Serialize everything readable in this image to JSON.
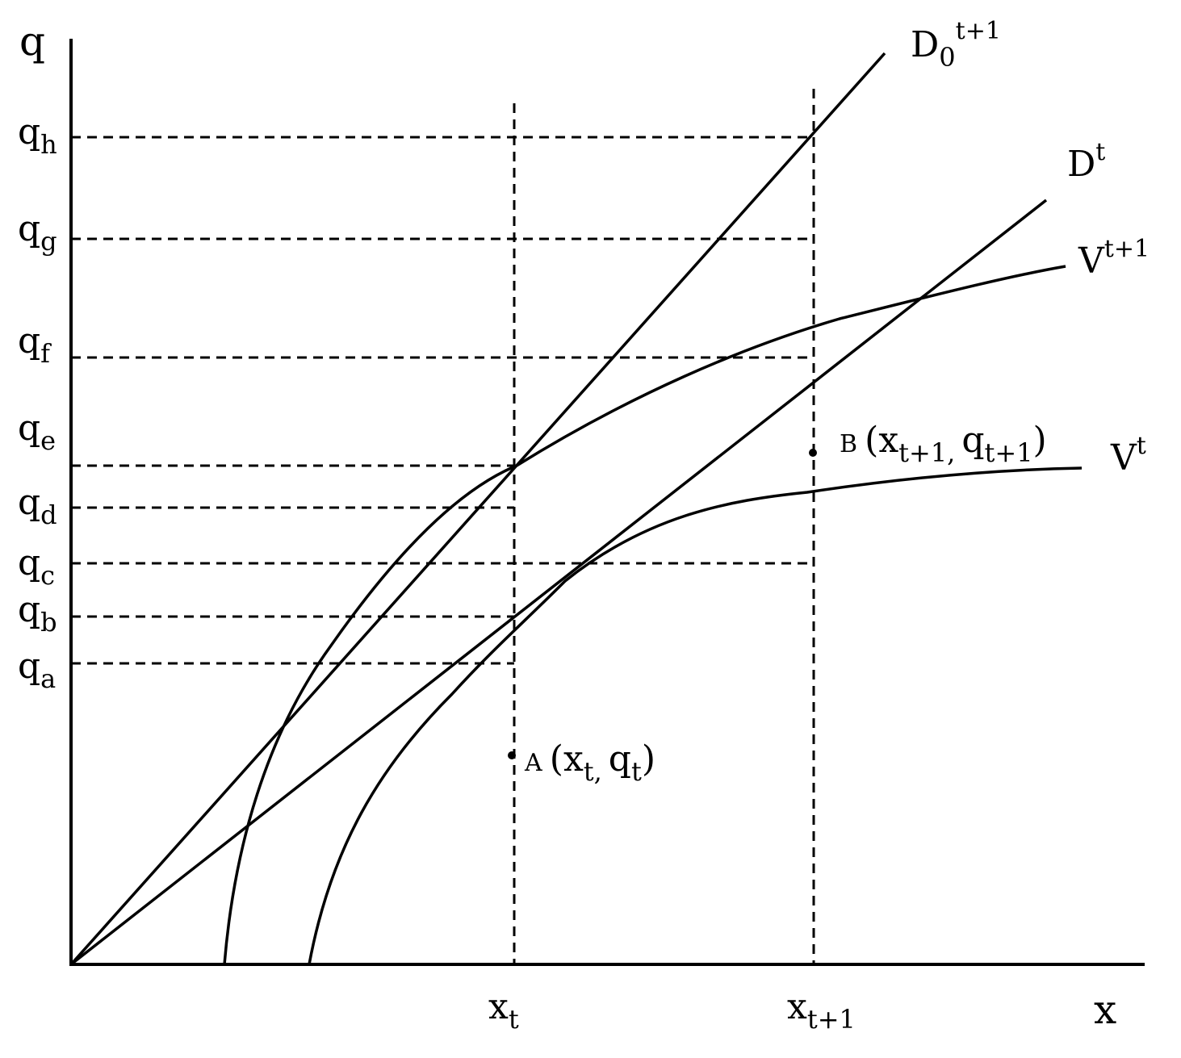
{
  "axes": {
    "y_label": "q",
    "x_label": "x"
  },
  "y_ticks": [
    {
      "main": "q",
      "sub": "h"
    },
    {
      "main": "q",
      "sub": "g"
    },
    {
      "main": "q",
      "sub": "f"
    },
    {
      "main": "q",
      "sub": "e"
    },
    {
      "main": "q",
      "sub": "d"
    },
    {
      "main": "q",
      "sub": "c"
    },
    {
      "main": "q",
      "sub": "b"
    },
    {
      "main": "q",
      "sub": "a"
    }
  ],
  "x_ticks": [
    {
      "main": "x",
      "sub": "t"
    },
    {
      "main": "x",
      "sub": "t+1"
    }
  ],
  "curves": {
    "d0": {
      "main": "D",
      "sub": "0",
      "sup": "t+1"
    },
    "dt": {
      "main": "D",
      "sup": "t"
    },
    "vt1": {
      "main": "V",
      "sup": "t+1"
    },
    "vt": {
      "main": "V",
      "sup": "t"
    }
  },
  "points": {
    "a": {
      "letter": "A",
      "open": "(",
      "x_main": "x",
      "x_sub": "t,",
      "q_main": "q",
      "q_sub": "t",
      "close": ")"
    },
    "b": {
      "letter": "B",
      "open": "(",
      "x_main": "x",
      "x_sub": "t+1,",
      "q_main": "q",
      "q_sub": "t+1",
      "close": ")"
    }
  }
}
